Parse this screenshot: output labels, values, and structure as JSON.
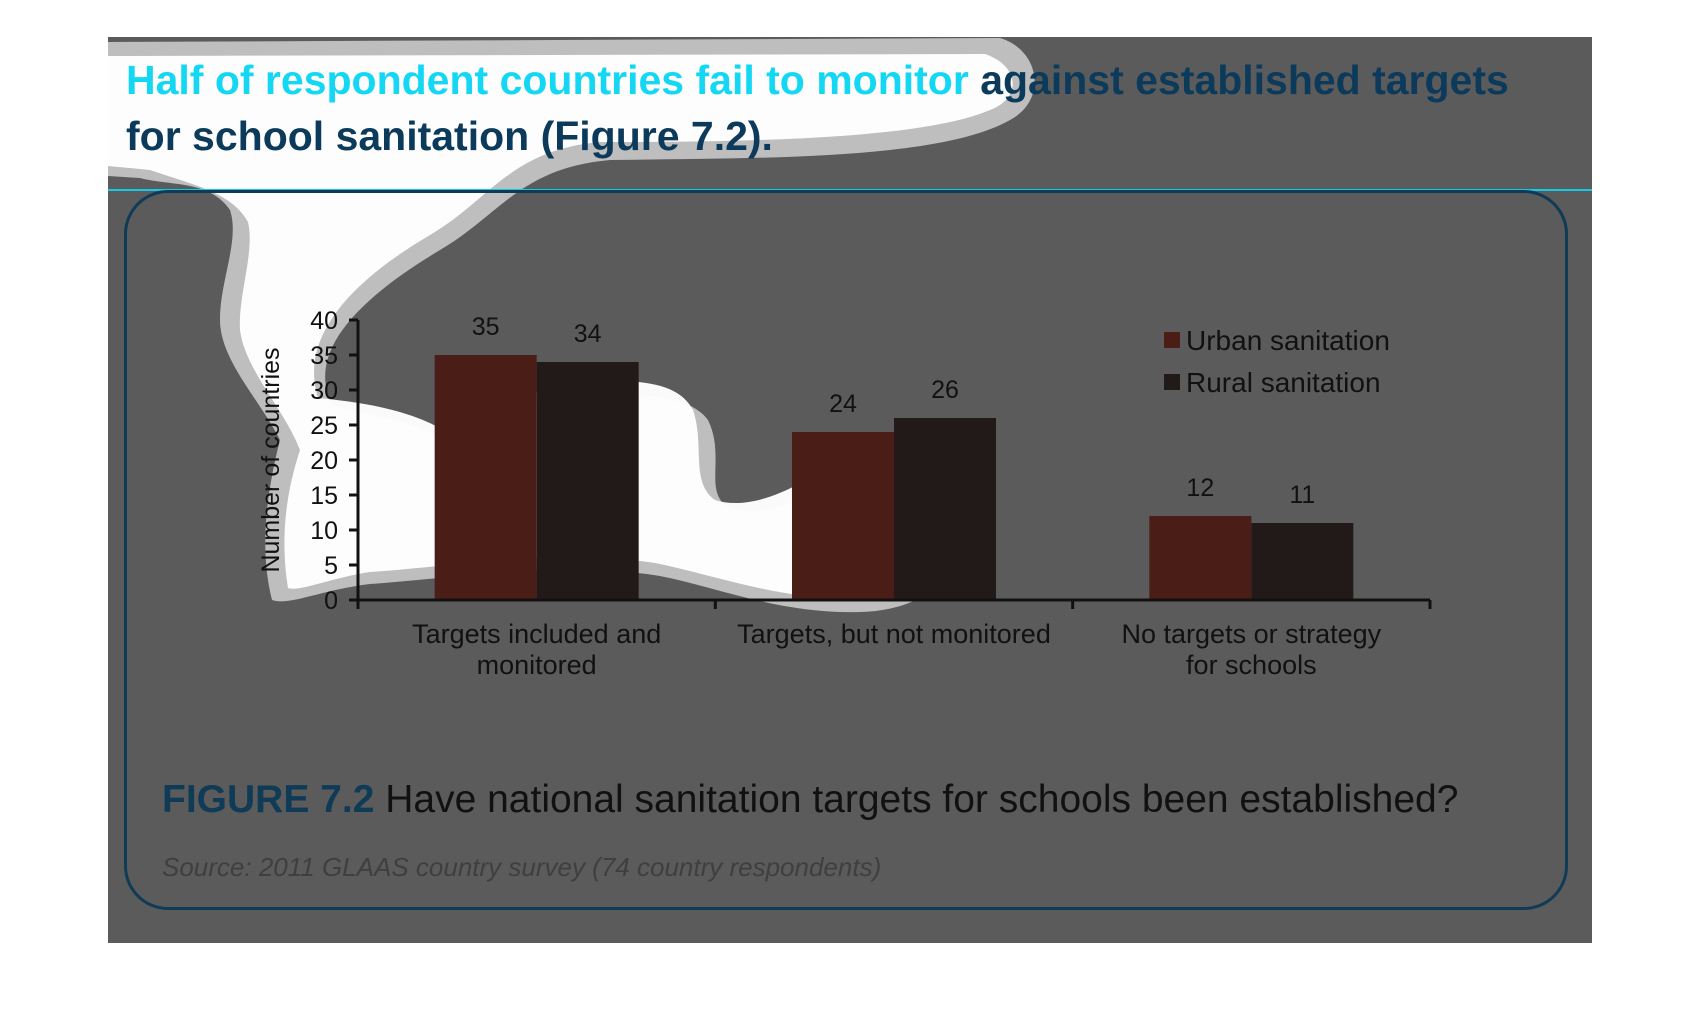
{
  "headline": {
    "highlighted": "Half of respondent countries fail to monitor",
    "rest": " against established targets for school sanitation (Figure 7.2)."
  },
  "figure": {
    "number": "FIGURE 7.2",
    "caption": " Have national sanitation targets for schools been established?",
    "source": "Source: 2011 GLAAS country survey (74 country respondents)"
  },
  "colors": {
    "urban": "#4a1e16",
    "rural": "#221a19",
    "panel": "#5b5b5b",
    "highlight": "#14d8f3",
    "frame": "#0f3b56",
    "spotlight_fill": "#ffffff",
    "spotlight_edge": "#c4c4c4"
  },
  "chart_data": {
    "type": "bar",
    "title": "",
    "xlabel": "",
    "ylabel": "Number of countries",
    "ylim": [
      0,
      40
    ],
    "yticks": [
      0,
      5,
      10,
      15,
      20,
      25,
      30,
      35,
      40
    ],
    "categories": [
      "Targets included and monitored",
      "Targets, but not monitored",
      "No targets or strategy for schools"
    ],
    "category_lines": [
      [
        "Targets included and",
        "monitored"
      ],
      [
        "Targets, but not monitored"
      ],
      [
        "No targets or strategy",
        "for schools"
      ]
    ],
    "series": [
      {
        "name": "Urban sanitation",
        "values": [
          35,
          24,
          12
        ]
      },
      {
        "name": "Rural sanitation",
        "values": [
          34,
          26,
          11
        ]
      }
    ],
    "legend_position": "top-right",
    "grid": false,
    "data_labels": true
  }
}
